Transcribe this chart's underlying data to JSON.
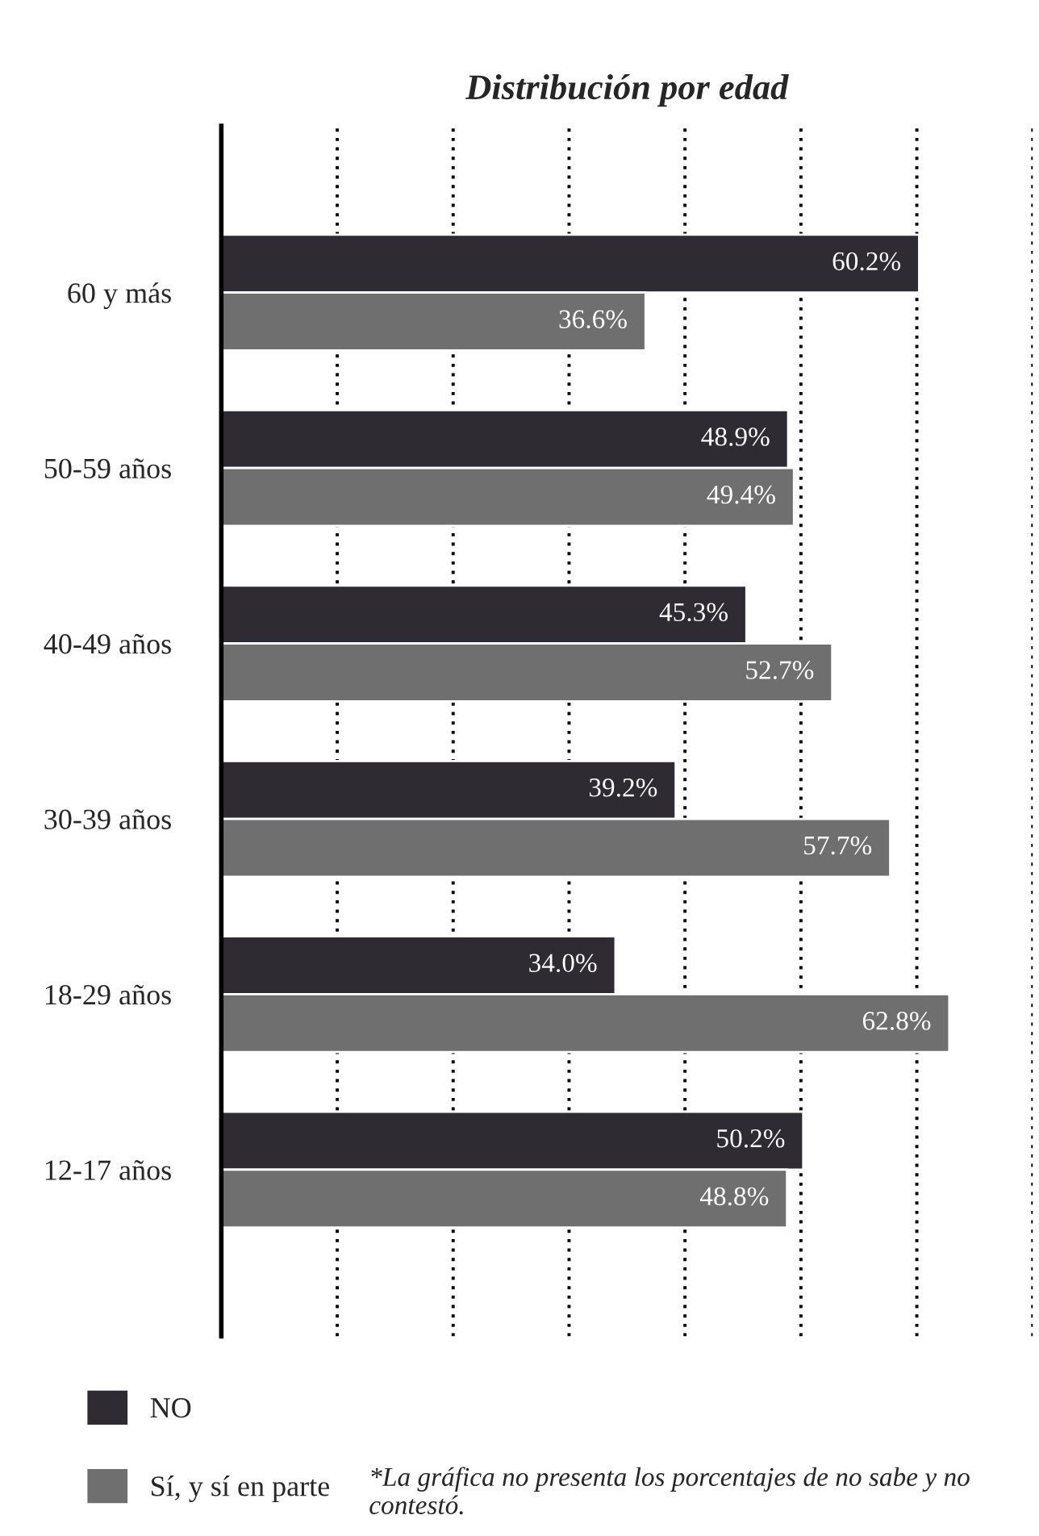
{
  "chart_data": {
    "type": "bar",
    "orientation": "horizontal",
    "title": "Distribución por edad",
    "categories": [
      "60 y más",
      "50-59 años",
      "40-49 años",
      "30-39 años",
      "18-29 años",
      "12-17 años"
    ],
    "series": [
      {
        "name": "NO",
        "color": "#2e2b33",
        "values": [
          60.2,
          48.9,
          45.3,
          39.2,
          34.0,
          50.2
        ],
        "value_labels": [
          "60.2%",
          "48.9%",
          "45.3%",
          "39.2%",
          "34.0%",
          "50.2%"
        ]
      },
      {
        "name": "Sí, y sí en parte",
        "color": "#6f6f6f",
        "values": [
          36.6,
          49.4,
          52.7,
          57.7,
          62.8,
          48.8
        ],
        "value_labels": [
          "36.6%",
          "49.4%",
          "52.7%",
          "57.7%",
          "62.8%",
          "48.8%"
        ]
      }
    ],
    "xlim": [
      0,
      70
    ],
    "xticks": [
      {
        "value": 10,
        "label": null
      },
      {
        "value": 20,
        "label": null
      },
      {
        "value": 30,
        "label": null
      },
      {
        "value": 40,
        "label": null
      },
      {
        "value": 50,
        "label": null
      },
      {
        "value": 60,
        "label": null
      },
      {
        "value": 70,
        "label": null
      }
    ],
    "tick_labels": "y",
    "grid": "x",
    "legend": "bottom left",
    "annotations": [
      "*La gráfica no presenta los porcentajes de no sabe y no contestó."
    ]
  }
}
